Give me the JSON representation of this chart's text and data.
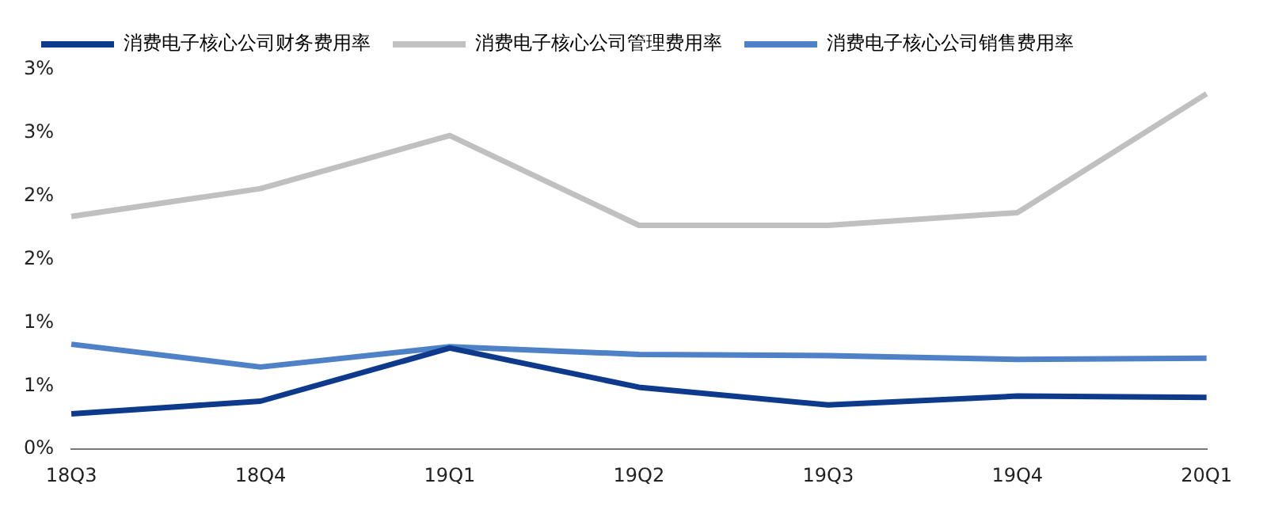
{
  "chart_data": {
    "type": "line",
    "categories": [
      "18Q3",
      "18Q4",
      "19Q1",
      "19Q2",
      "19Q3",
      "19Q4",
      "20Q1"
    ],
    "series": [
      {
        "name": "消费电子核心公司财务费用率",
        "color": "#0e3a8c",
        "values": [
          0.28,
          0.38,
          0.8,
          0.49,
          0.35,
          0.42,
          0.41
        ]
      },
      {
        "name": "消费电子核心公司管理费用率",
        "color": "#c0c0c0",
        "values": [
          1.84,
          2.06,
          2.48,
          1.77,
          1.77,
          1.87,
          2.81
        ]
      },
      {
        "name": "消费电子核心公司销售费用率",
        "color": "#4f81c7",
        "values": [
          0.83,
          0.65,
          0.81,
          0.75,
          0.74,
          0.71,
          0.72
        ]
      }
    ],
    "ylim": [
      0,
      3
    ],
    "yticks": [
      {
        "value": 0,
        "label": "0%"
      },
      {
        "value": 0.5,
        "label": "1%"
      },
      {
        "value": 1,
        "label": "1%"
      },
      {
        "value": 1.5,
        "label": "2%"
      },
      {
        "value": 2,
        "label": "2%"
      },
      {
        "value": 2.5,
        "label": "3%"
      },
      {
        "value": 3,
        "label": "3%"
      }
    ],
    "grid": false,
    "legend": "top",
    "marker": "none",
    "line_style": "solid"
  }
}
